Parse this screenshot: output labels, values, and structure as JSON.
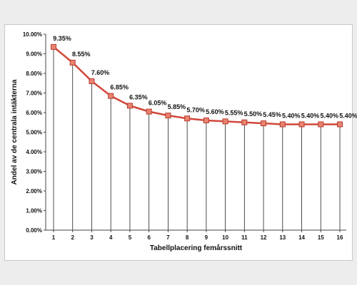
{
  "chart_data": {
    "type": "line",
    "title": "",
    "xlabel": "Tabellplacering femårssnitt",
    "ylabel": "Andel av de centrala intäkterna",
    "x": [
      1,
      2,
      3,
      4,
      5,
      6,
      7,
      8,
      9,
      10,
      11,
      12,
      13,
      14,
      15,
      16
    ],
    "values": [
      9.35,
      8.55,
      7.6,
      6.85,
      6.35,
      6.05,
      5.85,
      5.7,
      5.6,
      5.55,
      5.5,
      5.45,
      5.4,
      5.4,
      5.4,
      5.4
    ],
    "data_labels": [
      "9.35%",
      "8.55%",
      "7.60%",
      "6.85%",
      "6.35%",
      "6.05%",
      "5.85%",
      "5.70%",
      "5.60%",
      "5.55%",
      "5.50%",
      "5.45%",
      "5.40%",
      "5.40%",
      "5.40%",
      "5.40%"
    ],
    "ylim": [
      0,
      10
    ],
    "y_ticks": [
      0,
      1,
      2,
      3,
      4,
      5,
      6,
      7,
      8,
      9,
      10
    ],
    "y_tick_labels": [
      "0.00%",
      "1.00%",
      "2.00%",
      "3.00%",
      "4.00%",
      "5.00%",
      "6.00%",
      "7.00%",
      "8.00%",
      "9.00%",
      "10.00%"
    ],
    "x_tick_labels": [
      "1",
      "2",
      "3",
      "4",
      "5",
      "6",
      "7",
      "8",
      "9",
      "10",
      "11",
      "12",
      "13",
      "14",
      "15",
      "16"
    ],
    "drop_lines": true,
    "grid": false,
    "legend": "none",
    "colors": {
      "line": "#d1473a",
      "marker_fill": "#e8836f",
      "marker_stroke": "#b83a2e",
      "drop_line": "#222222",
      "axis": "#444444",
      "background": "#ededed",
      "plot_background": "#ffffff"
    }
  }
}
